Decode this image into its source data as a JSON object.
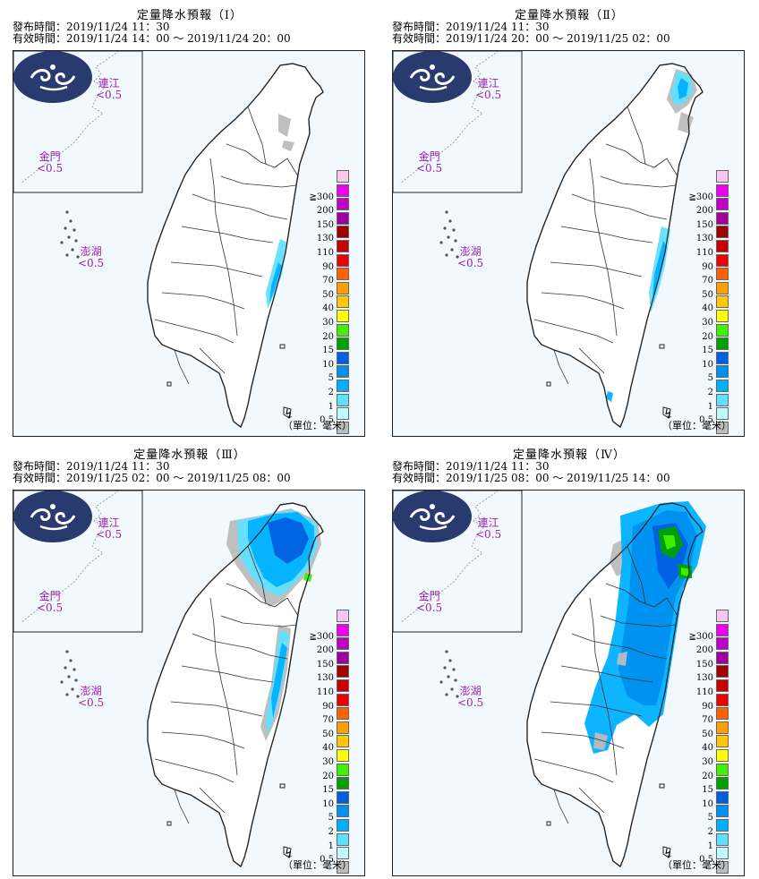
{
  "panels": [
    {
      "title": "定量降水預報（Ⅰ）",
      "issue": "發布時間：2019/11/24 11：30",
      "valid": "有效時間：2019/11/24 14：00 ～ 2019/11/24 20：00"
    },
    {
      "title": "定量降水預報（Ⅱ）",
      "issue": "發布時間：2019/11/24 11：30",
      "valid": "有效時間：2019/11/24 20：00 ～ 2019/11/25 02：00"
    },
    {
      "title": "定量降水預報（Ⅲ）",
      "issue": "發布時間：2019/11/24 11：30",
      "valid": "有效時間：2019/11/25 02：00 ～ 2019/11/25 08：00"
    },
    {
      "title": "定量降水預報（Ⅳ）",
      "issue": "發布時間：2019/11/24 11：30",
      "valid": "有效時間：2019/11/25 08：00 ～ 2019/11/25 14：00"
    }
  ],
  "islands": {
    "matsu": "連江",
    "kinmen": "金門",
    "penghu": "澎湖",
    "amount": "<0.5"
  },
  "legend": [
    {
      "label": "",
      "color": "#f8c8f0"
    },
    {
      "label": "≧300",
      "color": "#f000f0"
    },
    {
      "label": "200",
      "color": "#c000c8"
    },
    {
      "label": "150",
      "color": "#a000a0"
    },
    {
      "label": "130",
      "color": "#a00000"
    },
    {
      "label": "110",
      "color": "#c80000"
    },
    {
      "label": "90",
      "color": "#f00000"
    },
    {
      "label": "70",
      "color": "#ff6000"
    },
    {
      "label": "50",
      "color": "#ffa000"
    },
    {
      "label": "40",
      "color": "#ffc800"
    },
    {
      "label": "30",
      "color": "#ffff00"
    },
    {
      "label": "20",
      "color": "#40f000"
    },
    {
      "label": "15",
      "color": "#00a000"
    },
    {
      "label": "10",
      "color": "#0060e0"
    },
    {
      "label": "5",
      "color": "#0090f0"
    },
    {
      "label": "2",
      "color": "#00b0ff"
    },
    {
      "label": "1",
      "color": "#60e0ff"
    },
    {
      "label": "0.5",
      "color": "#c0f8ff"
    },
    {
      "label": "",
      "color": "#bcbcbc"
    }
  ],
  "unit": "（單位：毫米）"
}
